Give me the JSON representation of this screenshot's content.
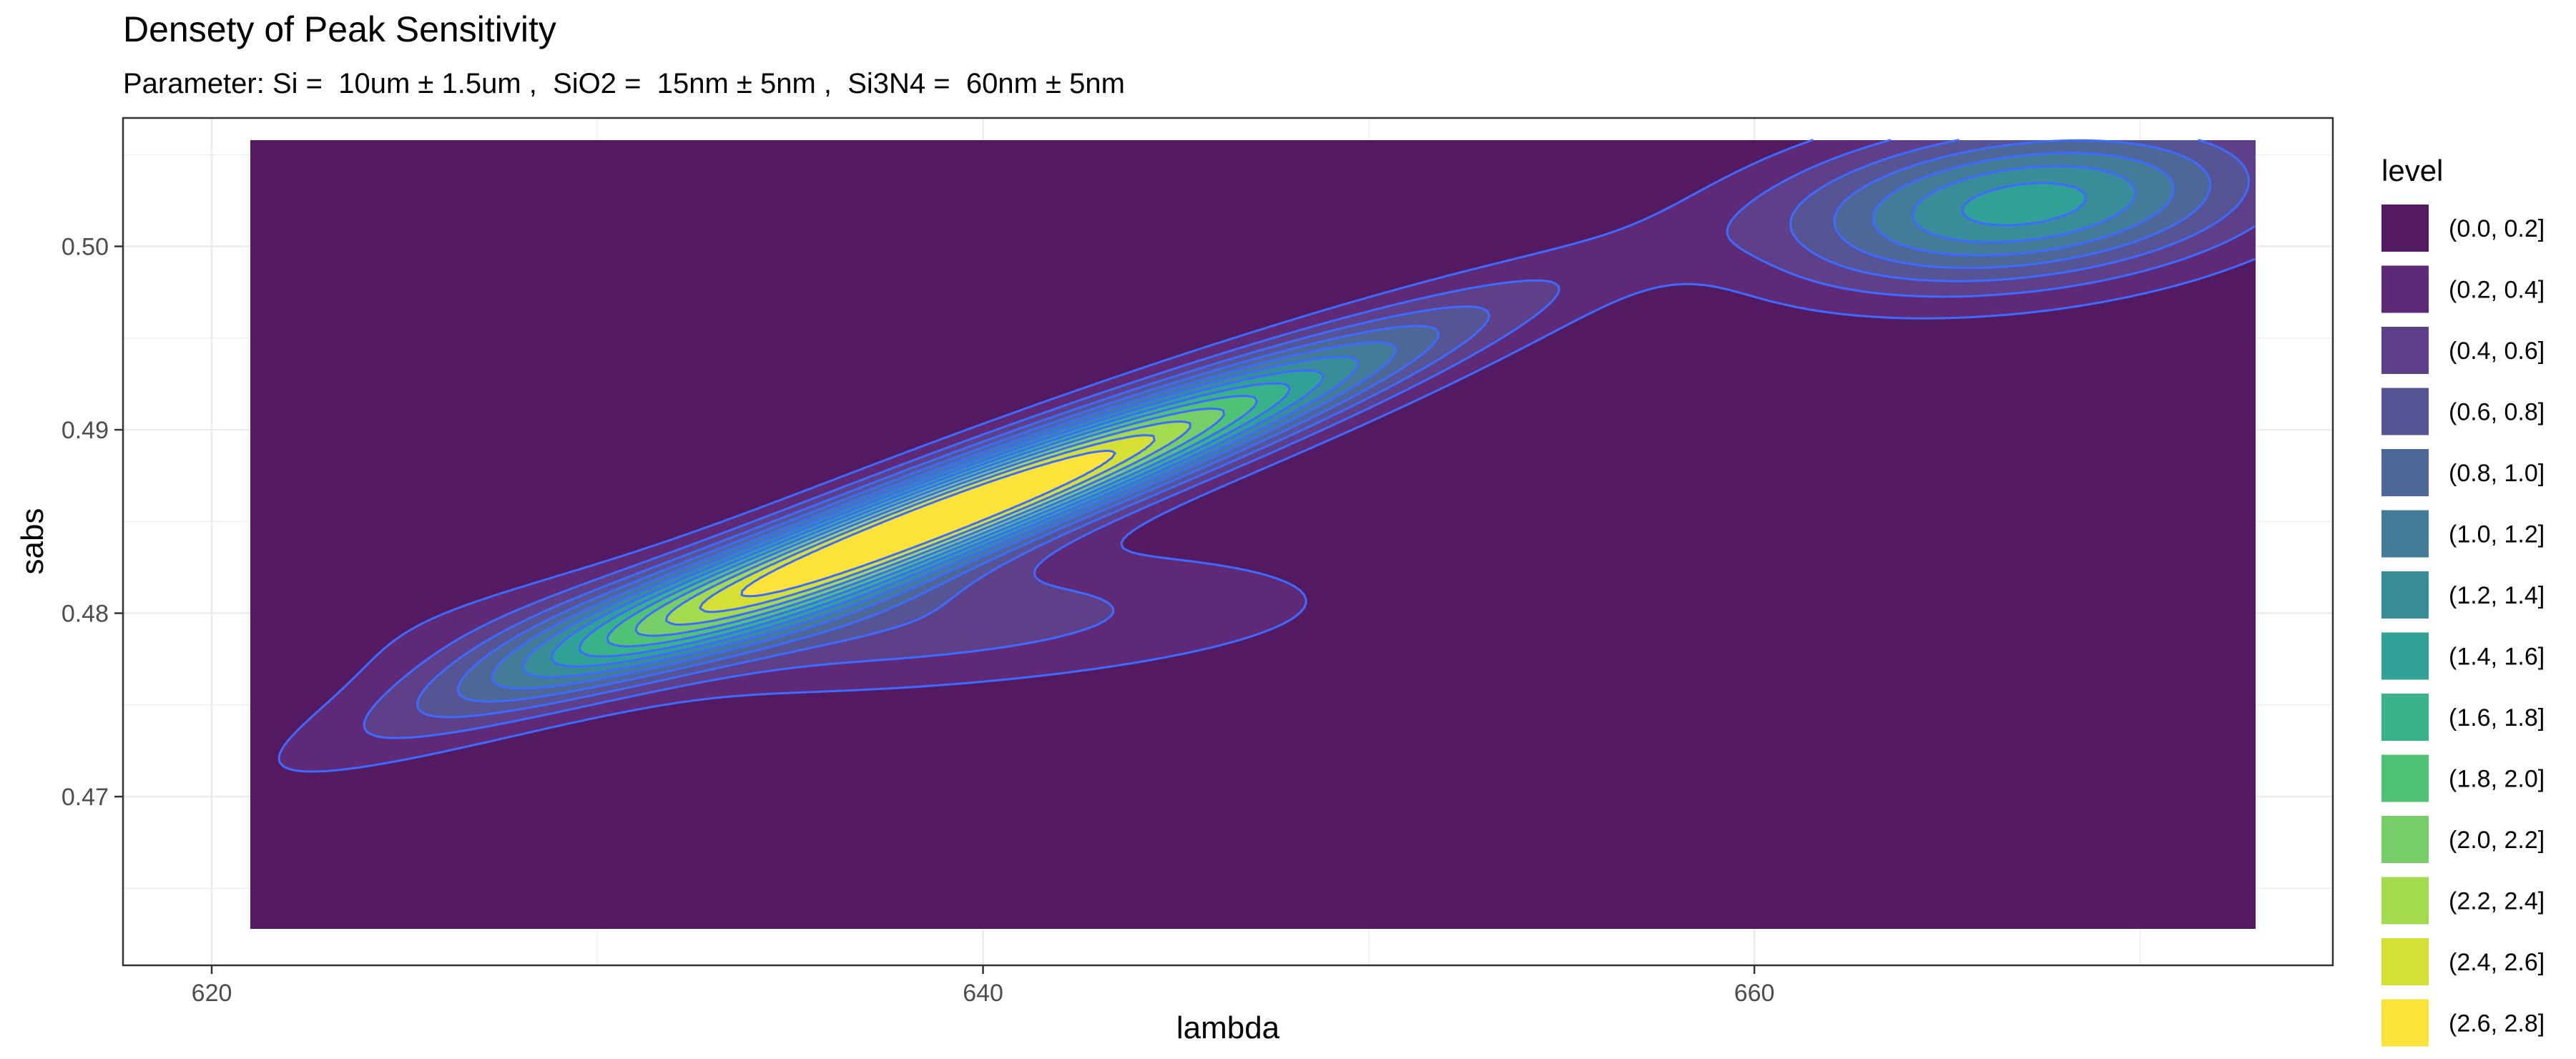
{
  "chart_data": {
    "type": "heatmap",
    "subtype": "filled-density-contour",
    "title": "Densety of Peak Sensitivity",
    "subtitle": "Parameter: Si =  10um ± 1.5um ,  SiO2 =  15nm ± 5nm ,  Si3N4 =  60nm ± 5nm",
    "xlabel": "lambda",
    "ylabel": "sabs",
    "xlim": [
      617.7,
      675.0
    ],
    "ylim": [
      0.4608,
      0.507
    ],
    "x_ticks": [
      620,
      640,
      660
    ],
    "x_tick_labels": [
      "620",
      "640",
      "660"
    ],
    "y_ticks": [
      0.47,
      0.48,
      0.49,
      0.5
    ],
    "y_tick_labels": [
      "0.47",
      "0.48",
      "0.49",
      "0.50"
    ],
    "grid": true,
    "data_extent": {
      "x": [
        621.0,
        673.0
      ],
      "y": [
        0.4628,
        0.5058
      ]
    },
    "contour_line_color": "#3e6bff",
    "legend": {
      "title": "level",
      "position": "right",
      "entries": [
        {
          "label": "(0.0, 0.2]",
          "color": "#541a61"
        },
        {
          "label": "(0.2, 0.4]",
          "color": "#5e2a78"
        },
        {
          "label": "(0.4, 0.6]",
          "color": "#5e408a"
        },
        {
          "label": "(0.6, 0.8]",
          "color": "#565495"
        },
        {
          "label": "(0.8, 1.0]",
          "color": "#4d6797"
        },
        {
          "label": "(1.0, 1.2]",
          "color": "#437b98"
        },
        {
          "label": "(1.2, 1.4]",
          "color": "#398d99"
        },
        {
          "label": "(1.4, 1.6]",
          "color": "#31a096"
        },
        {
          "label": "(1.6, 1.8]",
          "color": "#39b289"
        },
        {
          "label": "(1.8, 2.0]",
          "color": "#4fc276"
        },
        {
          "label": "(2.0, 2.2]",
          "color": "#77ce68"
        },
        {
          "label": "(2.2, 2.4]",
          "color": "#a3da4e"
        },
        {
          "label": "(2.4, 2.6]",
          "color": "#d4e134"
        },
        {
          "label": "(2.6, 2.8]",
          "color": "#fce33a"
        }
      ]
    },
    "density_components": [
      {
        "mu_x": 639.5,
        "mu_y": 0.4857,
        "sd_x": 7.6,
        "sd_y": 0.00615,
        "rho": 0.955,
        "weight": 2.97
      },
      {
        "mu_x": 667.0,
        "mu_y": 0.5023,
        "sd_x": 4.3,
        "sd_y": 0.0031,
        "rho": 0.3,
        "weight": 1.5
      },
      {
        "mu_x": 637.0,
        "mu_y": 0.4795,
        "sd_x": 8.0,
        "sd_y": 0.0027,
        "rho": 0.3,
        "weight": 0.55
      }
    ]
  }
}
